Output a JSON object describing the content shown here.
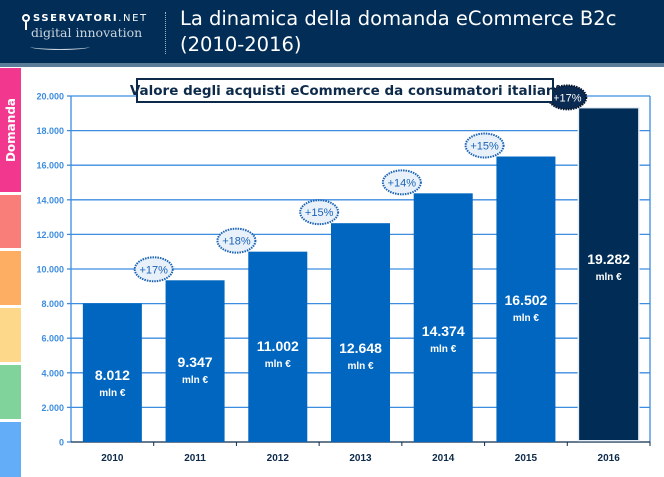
{
  "header": {
    "logo_top": "SSERVATORI",
    "logo_net": ".NET",
    "logo_bottom": "digital innovation",
    "title_line1": "La dinamica della domanda eCommerce B2c",
    "title_line2": "(2010-2016)"
  },
  "sidebar": {
    "label": "Domanda",
    "segments": [
      {
        "name": "domanda",
        "color": "#f2378f"
      },
      {
        "name": "segment-2",
        "color": "#f97e7a"
      },
      {
        "name": "segment-3",
        "color": "#fdae63"
      },
      {
        "name": "segment-4",
        "color": "#fed88a"
      },
      {
        "name": "segment-5",
        "color": "#80d39b"
      },
      {
        "name": "segment-6",
        "color": "#63acf8"
      }
    ]
  },
  "chart_data": {
    "type": "bar",
    "title": "Valore degli acquisti eCommerce da consumatori italiani",
    "xlabel": "",
    "ylabel": "",
    "categories": [
      "2010",
      "2011",
      "2012",
      "2013",
      "2014",
      "2015",
      "2016"
    ],
    "values": [
      8012,
      9347,
      11002,
      12648,
      14374,
      16502,
      19282
    ],
    "value_labels": [
      "8.012",
      "9.347",
      "11.002",
      "12.648",
      "14.374",
      "16.502",
      "19.282"
    ],
    "unit_label": "mln €",
    "growth_labels": [
      "",
      "+17%",
      "+18%",
      "+15%",
      "+14%",
      "+15%",
      "+17%"
    ],
    "ylim": [
      0,
      20000
    ],
    "yticks": [
      0,
      2000,
      4000,
      6000,
      8000,
      10000,
      12000,
      14000,
      16000,
      18000,
      20000
    ],
    "ytick_labels": [
      "0",
      "2.000",
      "4.000",
      "6.000",
      "8.000",
      "10.000",
      "12.000",
      "14.000",
      "16.000",
      "18.000",
      "20.000"
    ],
    "grid": true,
    "highlight_category": "2016",
    "colors": {
      "bar": "#0066bf",
      "bar_highlight": "#002c55",
      "grid": "#3c8de0",
      "tick_label": "#3c8de0",
      "category_label": "#0d2a4a",
      "badge_fill": "#e8f0fa",
      "badge_border": "#1b63b5",
      "badge_text": "#1b63b5",
      "badge_highlight_fill": "#0a2a52",
      "badge_highlight_text": "#ffffff"
    }
  }
}
